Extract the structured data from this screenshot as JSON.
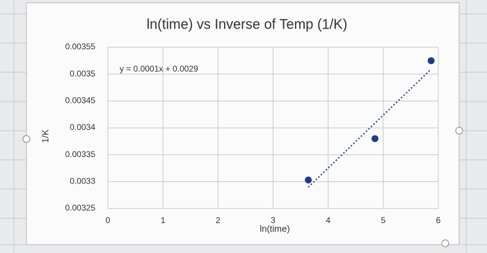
{
  "chart_data": {
    "type": "scatter",
    "title": "ln(time) vs Inverse of Temp (1/K)",
    "x_label": "ln(time)",
    "y_label": "1/K",
    "annotation": "y = 0.0001x + 0.0029",
    "x": [
      3.64,
      4.85,
      5.87
    ],
    "values": [
      0.003303,
      0.00338,
      0.003525
    ],
    "color": "#1f3a8a",
    "trendline": true,
    "xlim": [
      0,
      6
    ],
    "xticks": [
      0,
      1,
      2,
      3,
      4,
      5,
      6
    ],
    "ylim": [
      0.00325,
      0.00355
    ],
    "yticks": [
      0.00325,
      0.0033,
      0.00335,
      0.0034,
      0.00345,
      0.0035,
      0.00355
    ],
    "grid": true
  }
}
